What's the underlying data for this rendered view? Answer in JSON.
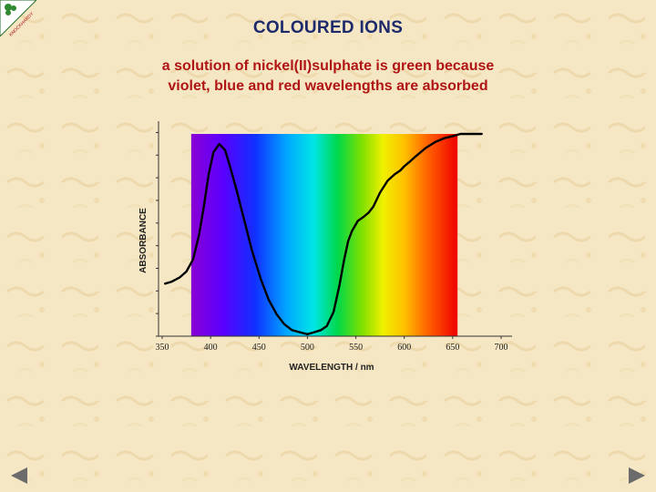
{
  "slide": {
    "title": "COLOURED IONS",
    "subtitle_lines": [
      "a solution of nickel(II)sulphate is green because",
      "violet, blue and red wavelengths are absorbed"
    ]
  },
  "logo": {
    "icon": "clover-logo-icon",
    "text": "KNOCKHARDY"
  },
  "colors": {
    "background": "#f6e7c4",
    "title": "#1d2a6b",
    "subtitle": "#b01515",
    "nav": "#6b6b6b"
  },
  "nav": {
    "prev_icon": "triangle-left-icon",
    "next_icon": "triangle-right-icon"
  },
  "chart_data": {
    "type": "line",
    "title": "",
    "xlabel": "WAVELENGTH / nm",
    "ylabel": "ABSORBANCE",
    "xlim": [
      350,
      700
    ],
    "ylim": [
      0,
      1
    ],
    "x_ticks": [
      350,
      400,
      450,
      500,
      550,
      600,
      650,
      700
    ],
    "y_ticks_shown": false,
    "grid": false,
    "legend": "none",
    "spectrum_band": {
      "from": 380,
      "to": 655
    },
    "series": [
      {
        "name": "",
        "color": "#000000",
        "x": [
          353,
          360,
          368,
          375,
          382,
          388,
          393,
          398,
          403,
          409,
          415,
          420,
          427,
          435,
          443,
          452,
          460,
          468,
          476,
          484,
          492,
          500,
          507,
          514,
          520,
          527,
          533,
          538,
          542,
          546,
          552,
          558,
          563,
          568,
          575,
          583,
          590,
          596,
          600,
          605,
          612,
          622,
          632,
          642,
          651,
          658,
          665,
          673,
          680
        ],
        "y": [
          0.26,
          0.27,
          0.29,
          0.32,
          0.38,
          0.5,
          0.64,
          0.8,
          0.91,
          0.95,
          0.92,
          0.84,
          0.72,
          0.57,
          0.42,
          0.28,
          0.18,
          0.11,
          0.06,
          0.03,
          0.02,
          0.01,
          0.02,
          0.03,
          0.05,
          0.12,
          0.25,
          0.38,
          0.47,
          0.52,
          0.57,
          0.59,
          0.61,
          0.64,
          0.71,
          0.77,
          0.8,
          0.82,
          0.84,
          0.86,
          0.89,
          0.93,
          0.96,
          0.98,
          0.99,
          1.0,
          1.0,
          1.0,
          1.0
        ]
      }
    ]
  }
}
